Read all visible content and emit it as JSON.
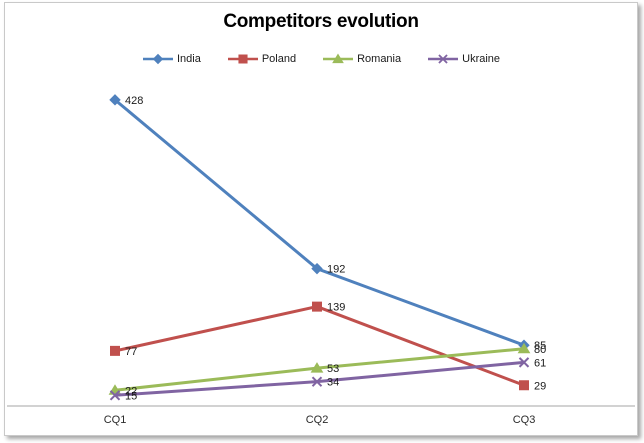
{
  "frame": {
    "background": "#ffffff",
    "border_color": "#c9c9c9"
  },
  "chart_data": {
    "type": "line",
    "title": "Competitors evolution",
    "categories": [
      "CQ1",
      "CQ2",
      "CQ3"
    ],
    "series": [
      {
        "name": "India",
        "color": "#4F81BD",
        "marker": "diamond",
        "values": [
          428,
          192,
          85
        ]
      },
      {
        "name": "Poland",
        "color": "#C0504D",
        "marker": "square",
        "values": [
          77,
          139,
          29
        ]
      },
      {
        "name": "Romania",
        "color": "#9BBB59",
        "marker": "triangle",
        "values": [
          22,
          53,
          80
        ]
      },
      {
        "name": "Ukraine",
        "color": "#8064A2",
        "marker": "x",
        "values": [
          15,
          34,
          61
        ]
      }
    ],
    "data_labels": true,
    "legend_position": "top",
    "gridlines": false,
    "y_axis_visible": false,
    "x_axis_line_color": "#a6a6a6",
    "xlabel": "",
    "ylabel": "",
    "ylim": [
      0,
      450
    ]
  }
}
